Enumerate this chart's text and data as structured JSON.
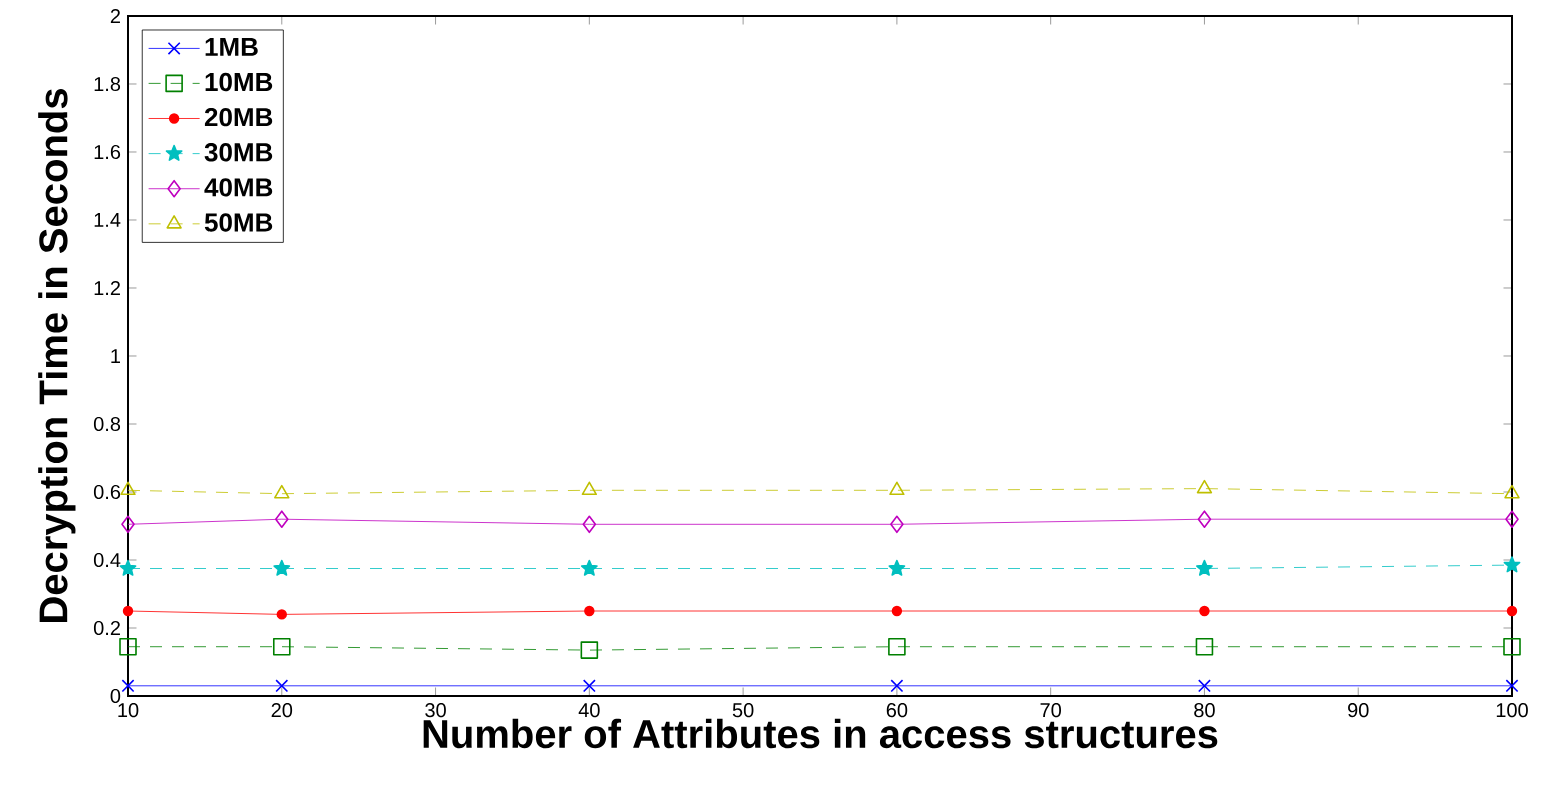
{
  "chart_data": {
    "type": "line",
    "xlabel": "Number of Attributes in access structures",
    "ylabel": "Decryption Time in Seconds",
    "x": [
      10,
      20,
      40,
      60,
      80,
      100
    ],
    "series": [
      {
        "name": "1MB",
        "color": "#0000ff",
        "marker": "cross",
        "line_style": "solid",
        "values": [
          0.03,
          0.03,
          0.03,
          0.03,
          0.03,
          0.03
        ]
      },
      {
        "name": "10MB",
        "color": "#008000",
        "marker": "square",
        "line_style": "dashed",
        "values": [
          0.145,
          0.145,
          0.135,
          0.145,
          0.145,
          0.145
        ]
      },
      {
        "name": "20MB",
        "color": "#ff0000",
        "marker": "circle",
        "line_style": "solid",
        "values": [
          0.25,
          0.24,
          0.25,
          0.25,
          0.25,
          0.25
        ]
      },
      {
        "name": "30MB",
        "color": "#00bfbf",
        "marker": "star",
        "line_style": "dashed",
        "values": [
          0.375,
          0.375,
          0.375,
          0.375,
          0.375,
          0.385
        ]
      },
      {
        "name": "40MB",
        "color": "#bf00bf",
        "marker": "diamond",
        "line_style": "solid",
        "values": [
          0.505,
          0.52,
          0.505,
          0.505,
          0.52,
          0.52
        ]
      },
      {
        "name": "50MB",
        "color": "#bfbf00",
        "marker": "triangle",
        "line_style": "dashed",
        "values": [
          0.605,
          0.595,
          0.605,
          0.605,
          0.61,
          0.595
        ]
      }
    ],
    "xlim": [
      10,
      100
    ],
    "xticks": [
      10,
      20,
      30,
      40,
      50,
      60,
      70,
      80,
      90,
      100
    ],
    "ylim": [
      0,
      2
    ],
    "yticks": [
      0,
      0.2,
      0.4,
      0.6,
      0.8,
      1,
      1.2,
      1.4,
      1.6,
      1.8,
      2
    ],
    "grid": false,
    "legend": "top left"
  }
}
